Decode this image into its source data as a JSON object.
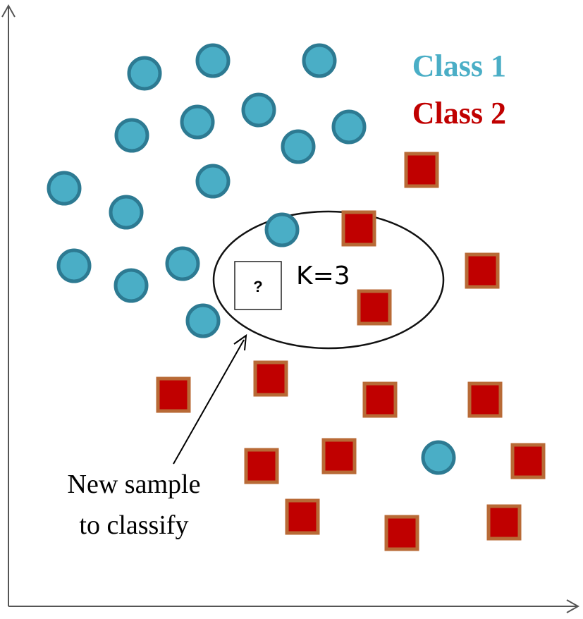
{
  "legend": {
    "class1_label": "Class 1",
    "class2_label": "Class 2",
    "class1_color": "#4aaec6",
    "class2_color": "#c00000"
  },
  "styles": {
    "circle_stroke": "#2d7a92",
    "square_border": "#b86a36"
  },
  "k_label": "K=3",
  "query_label": "?",
  "annotation": {
    "line1": "New sample",
    "line2": "to classify"
  }
}
